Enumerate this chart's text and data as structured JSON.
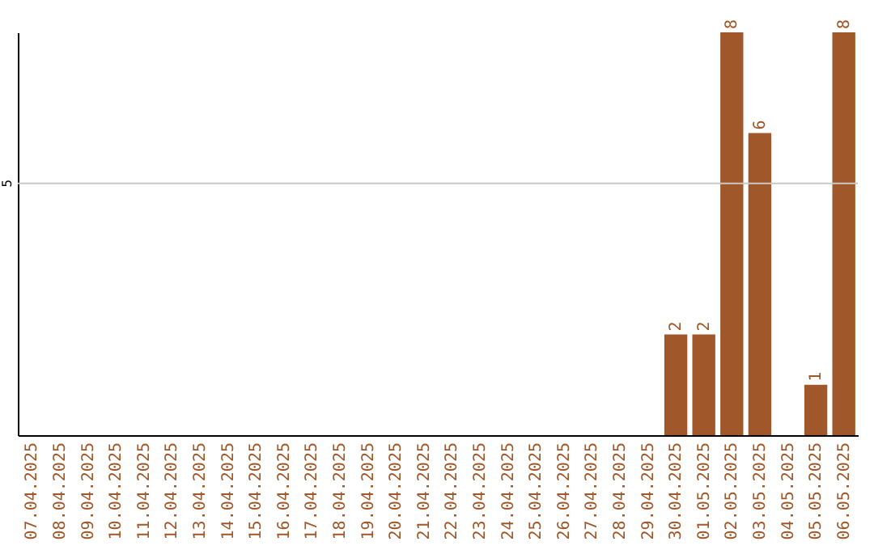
{
  "chart_data": {
    "type": "bar",
    "categories": [
      "07.04.2025",
      "08.04.2025",
      "09.04.2025",
      "10.04.2025",
      "11.04.2025",
      "12.04.2025",
      "13.04.2025",
      "14.04.2025",
      "15.04.2025",
      "16.04.2025",
      "17.04.2025",
      "18.04.2025",
      "19.04.2025",
      "20.04.2025",
      "21.04.2025",
      "22.04.2025",
      "23.04.2025",
      "24.04.2025",
      "25.04.2025",
      "26.04.2025",
      "27.04.2025",
      "28.04.2025",
      "29.04.2025",
      "30.04.2025",
      "01.05.2025",
      "02.05.2025",
      "03.05.2025",
      "04.05.2025",
      "05.05.2025",
      "06.05.2025"
    ],
    "values": [
      null,
      null,
      null,
      null,
      null,
      null,
      null,
      null,
      null,
      null,
      null,
      null,
      null,
      null,
      null,
      null,
      null,
      null,
      null,
      null,
      null,
      null,
      null,
      2,
      2,
      8,
      6,
      null,
      1,
      8
    ],
    "value_labels": [
      null,
      null,
      null,
      null,
      null,
      null,
      null,
      null,
      null,
      null,
      null,
      null,
      null,
      null,
      null,
      null,
      null,
      null,
      null,
      null,
      null,
      null,
      null,
      "2",
      "2",
      "8",
      "6",
      null,
      "1",
      "8"
    ],
    "color": "#a0582a",
    "ref_lines": [
      {
        "axis": "y",
        "value": 5,
        "label": "5",
        "color": "#c8c8c8"
      }
    ]
  }
}
